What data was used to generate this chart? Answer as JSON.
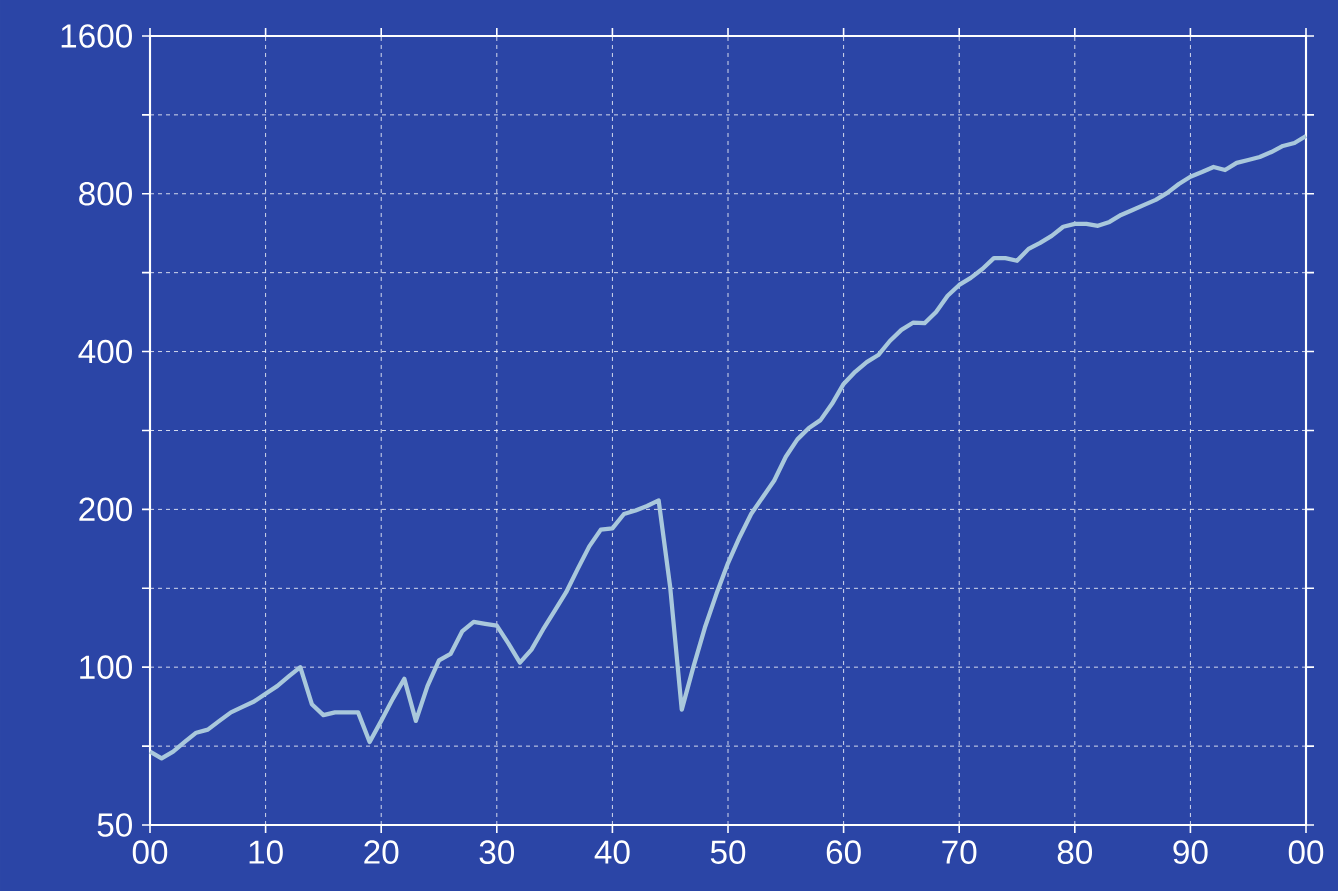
{
  "chart_data": {
    "type": "line",
    "log": "y",
    "grid": true,
    "line_style": "solid",
    "marker": "none",
    "x": [
      1900,
      1901,
      1902,
      1903,
      1904,
      1905,
      1906,
      1907,
      1908,
      1909,
      1910,
      1911,
      1912,
      1913,
      1914,
      1915,
      1916,
      1917,
      1918,
      1919,
      1920,
      1921,
      1922,
      1923,
      1924,
      1925,
      1926,
      1927,
      1928,
      1929,
      1930,
      1931,
      1932,
      1933,
      1934,
      1935,
      1936,
      1937,
      1938,
      1939,
      1940,
      1941,
      1942,
      1943,
      1944,
      1945,
      1946,
      1947,
      1948,
      1949,
      1950,
      1951,
      1952,
      1953,
      1954,
      1955,
      1956,
      1957,
      1958,
      1959,
      1960,
      1961,
      1962,
      1963,
      1964,
      1965,
      1966,
      1967,
      1968,
      1969,
      1970,
      1971,
      1972,
      1973,
      1974,
      1975,
      1976,
      1977,
      1978,
      1979,
      1980,
      1981,
      1982,
      1983,
      1984,
      1985,
      1986,
      1987,
      1988,
      1989,
      1990,
      1991,
      1992,
      1993,
      1994,
      1995,
      1996,
      1997,
      1998,
      1999,
      2000
    ],
    "series": [
      {
        "color": "#a9c8dc",
        "values": [
          69,
          67,
          69,
          72,
          75,
          76,
          79,
          82,
          84,
          86,
          89,
          92,
          96,
          100,
          85,
          81,
          82,
          82,
          82,
          72,
          79,
          87,
          95,
          79,
          92,
          103,
          106,
          117,
          122,
          121,
          120,
          111,
          102,
          108,
          118,
          128,
          139,
          154,
          170,
          183,
          184,
          196,
          199,
          203,
          208,
          142,
          83,
          100,
          119,
          138,
          158,
          177,
          196,
          211,
          227,
          252,
          272,
          286,
          296,
          318,
          347,
          366,
          382,
          394,
          419,
          440,
          454,
          453,
          476,
          511,
          536,
          553,
          575,
          603,
          603,
          596,
          628,
          645,
          665,
          692,
          701,
          701,
          695,
          707,
          729,
          745,
          762,
          779,
          803,
          835,
          862,
          880,
          900,
          888,
          916,
          928,
          940,
          961,
          987,
          1000,
          1031
        ]
      }
    ],
    "xlim": [
      1900,
      2000
    ],
    "xticks": [
      {
        "value": 1900,
        "label": "00"
      },
      {
        "value": 1910,
        "label": "10"
      },
      {
        "value": 1920,
        "label": "20"
      },
      {
        "value": 1930,
        "label": "30"
      },
      {
        "value": 1940,
        "label": "40"
      },
      {
        "value": 1950,
        "label": "50"
      },
      {
        "value": 1960,
        "label": "60"
      },
      {
        "value": 1970,
        "label": "70"
      },
      {
        "value": 1980,
        "label": "80"
      },
      {
        "value": 1990,
        "label": "90"
      },
      {
        "value": 2000,
        "label": "00"
      }
    ],
    "ylim": [
      50,
      1600
    ],
    "yticks": [
      50,
      {
        "value": 70.7,
        "label": null
      },
      100,
      {
        "value": 141.4,
        "label": null
      },
      200,
      {
        "value": 282.8,
        "label": null
      },
      400,
      {
        "value": 565.7,
        "label": null
      },
      800,
      {
        "value": 1131.4,
        "label": null
      },
      1600
    ]
  }
}
